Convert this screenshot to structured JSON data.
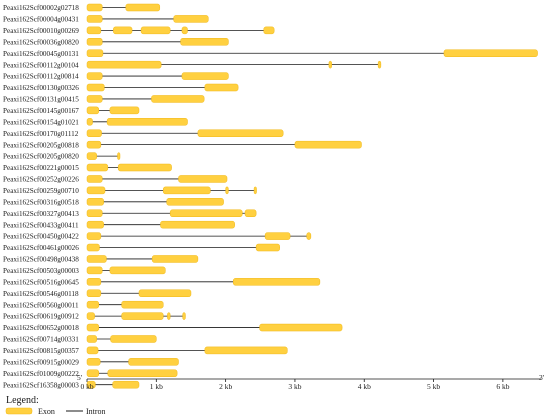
{
  "colors": {
    "exon": "#ffd040",
    "exon_stroke": "#f0b818",
    "intron": "#1a1a1a",
    "axis": "#1a1a1a"
  },
  "axis": {
    "max_bp": 6550,
    "end5": "5'",
    "end3": "3'",
    "ticks": [
      {
        "bp": 0,
        "label": "0 kb"
      },
      {
        "bp": 1000,
        "label": "1 kb"
      },
      {
        "bp": 2000,
        "label": "2 kb"
      },
      {
        "bp": 3000,
        "label": "3 kb"
      },
      {
        "bp": 4000,
        "label": "4 kb"
      },
      {
        "bp": 5000,
        "label": "5 kb"
      },
      {
        "bp": 6000,
        "label": "6 kb"
      }
    ]
  },
  "legend": {
    "title": "Legend:",
    "exon_label": "Exon",
    "intron_label": "Intron"
  },
  "chart_data": {
    "type": "gene-structure",
    "unit": "bp",
    "genes": [
      {
        "name": "Peaxi162Scf00002g02718",
        "length": 1050,
        "exons": [
          [
            0,
            220
          ],
          [
            560,
            1050
          ]
        ]
      },
      {
        "name": "Peaxi162Scf00004g00431",
        "length": 1750,
        "exons": [
          [
            0,
            220
          ],
          [
            1250,
            1750
          ]
        ]
      },
      {
        "name": "Peaxi162Scf00010g00269",
        "length": 2700,
        "exons": [
          [
            0,
            200
          ],
          [
            380,
            650
          ],
          [
            780,
            1200
          ],
          [
            1370,
            1450
          ],
          [
            2550,
            2700
          ]
        ]
      },
      {
        "name": "Peaxi162Scf00036g00820",
        "length": 2040,
        "exons": [
          [
            0,
            220
          ],
          [
            1350,
            2040
          ]
        ]
      },
      {
        "name": "Peaxi162Scf00045g00131",
        "length": 6500,
        "exons": [
          [
            0,
            230
          ],
          [
            5150,
            6500
          ]
        ]
      },
      {
        "name": "Peaxi162Scf00112g00104",
        "length": 4240,
        "exons": [
          [
            0,
            1070
          ],
          [
            3490,
            3530
          ],
          [
            4200,
            4240
          ]
        ]
      },
      {
        "name": "Peaxi162Scf00112g00814",
        "length": 2040,
        "exons": [
          [
            0,
            220
          ],
          [
            1370,
            2040
          ]
        ]
      },
      {
        "name": "Peaxi162Scf00130g00326",
        "length": 2180,
        "exons": [
          [
            0,
            250
          ],
          [
            1700,
            2180
          ]
        ]
      },
      {
        "name": "Peaxi162Scf00131g00415",
        "length": 1690,
        "exons": [
          [
            0,
            220
          ],
          [
            930,
            1690
          ]
        ]
      },
      {
        "name": "Peaxi162Scf00145g00167",
        "length": 750,
        "exons": [
          [
            0,
            170
          ],
          [
            330,
            750
          ]
        ]
      },
      {
        "name": "Peaxi162Scf00154g01021",
        "length": 1450,
        "exons": [
          [
            0,
            80
          ],
          [
            290,
            1450
          ]
        ]
      },
      {
        "name": "Peaxi162Scf00170g01112",
        "length": 2830,
        "exons": [
          [
            0,
            210
          ],
          [
            1600,
            2830
          ]
        ]
      },
      {
        "name": "Peaxi162Scf00205g00818",
        "length": 3960,
        "exons": [
          [
            0,
            200
          ],
          [
            3000,
            3960
          ]
        ]
      },
      {
        "name": "Peaxi162Scf00205g00820",
        "length": 470,
        "exons": [
          [
            0,
            140
          ],
          [
            440,
            470
          ]
        ]
      },
      {
        "name": "Peaxi162Scf00221g00015",
        "length": 1220,
        "exons": [
          [
            0,
            300
          ],
          [
            450,
            1220
          ]
        ]
      },
      {
        "name": "Peaxi162Scf00252g00226",
        "length": 2020,
        "exons": [
          [
            0,
            220
          ],
          [
            1320,
            2020
          ]
        ]
      },
      {
        "name": "Peaxi162Scf00259g00710",
        "length": 2440,
        "exons": [
          [
            0,
            260
          ],
          [
            1100,
            1780
          ],
          [
            2000,
            2040
          ],
          [
            2410,
            2440
          ]
        ]
      },
      {
        "name": "Peaxi162Scf00316g00518",
        "length": 1970,
        "exons": [
          [
            0,
            240
          ],
          [
            1150,
            1970
          ]
        ]
      },
      {
        "name": "Peaxi162Scf00327g00413",
        "length": 2440,
        "exons": [
          [
            0,
            220
          ],
          [
            1200,
            2240
          ],
          [
            2280,
            2440
          ]
        ]
      },
      {
        "name": "Peaxi162Scf00433g00411",
        "length": 2130,
        "exons": [
          [
            0,
            240
          ],
          [
            1060,
            2130
          ]
        ]
      },
      {
        "name": "Peaxi162Scf00450g00422",
        "length": 3230,
        "exons": [
          [
            0,
            200
          ],
          [
            2570,
            2930
          ],
          [
            3170,
            3230
          ]
        ]
      },
      {
        "name": "Peaxi162Scf00461g00026",
        "length": 2780,
        "exons": [
          [
            0,
            180
          ],
          [
            2440,
            2780
          ]
        ]
      },
      {
        "name": "Peaxi162Scf00498g00438",
        "length": 1600,
        "exons": [
          [
            0,
            280
          ],
          [
            940,
            1600
          ]
        ]
      },
      {
        "name": "Peaxi162Scf00503g00003",
        "length": 1130,
        "exons": [
          [
            0,
            220
          ],
          [
            330,
            1130
          ]
        ]
      },
      {
        "name": "Peaxi162Scf00516g00645",
        "length": 3360,
        "exons": [
          [
            0,
            200
          ],
          [
            2110,
            3360
          ]
        ]
      },
      {
        "name": "Peaxi162Scf00546g00118",
        "length": 1500,
        "exons": [
          [
            0,
            200
          ],
          [
            750,
            1500
          ]
        ]
      },
      {
        "name": "Peaxi162Scf00560g00011",
        "length": 1100,
        "exons": [
          [
            0,
            170
          ],
          [
            500,
            1100
          ]
        ]
      },
      {
        "name": "Peaxi162Scf00619g00912",
        "length": 1420,
        "exons": [
          [
            0,
            110
          ],
          [
            500,
            1100
          ],
          [
            1160,
            1200
          ],
          [
            1380,
            1420
          ]
        ]
      },
      {
        "name": "Peaxi162Scf00652g00018",
        "length": 3680,
        "exons": [
          [
            0,
            170
          ],
          [
            2490,
            3680
          ]
        ]
      },
      {
        "name": "Peaxi162Scf00714g00331",
        "length": 1000,
        "exons": [
          [
            0,
            140
          ],
          [
            340,
            1000
          ]
        ]
      },
      {
        "name": "Peaxi162Scf00815g00357",
        "length": 2890,
        "exons": [
          [
            0,
            160
          ],
          [
            1700,
            2890
          ]
        ]
      },
      {
        "name": "Peaxi162Scf00915g00029",
        "length": 1320,
        "exons": [
          [
            0,
            190
          ],
          [
            600,
            1320
          ]
        ]
      },
      {
        "name": "Peaxi162Scf01009g00222",
        "length": 1300,
        "exons": [
          [
            0,
            170
          ],
          [
            300,
            1300
          ]
        ]
      },
      {
        "name": "Peaxi162Scf16358g00003",
        "length": 750,
        "exons": [
          [
            0,
            120
          ],
          [
            370,
            750
          ]
        ]
      }
    ]
  }
}
